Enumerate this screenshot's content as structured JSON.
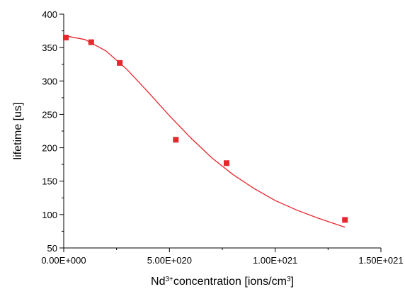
{
  "chart_data": {
    "type": "scatter",
    "title": "",
    "xlabel_parts": {
      "prefix": "Nd",
      "prefix_sup": "3+",
      "middle": "concentration [ions/cm",
      "middle_sup": "3",
      "suffix": "]"
    },
    "ylabel": "lifetime [us]",
    "xlim": [
      0,
      1.5e+21
    ],
    "ylim": [
      50,
      400
    ],
    "x_ticks": [
      0,
      5e+20,
      1e+21,
      1.5e+21
    ],
    "x_tick_labels": [
      "0.00E+000",
      "5.00E+020",
      "1.00E+021",
      "1.50E+021"
    ],
    "y_ticks": [
      50,
      100,
      150,
      200,
      250,
      300,
      350,
      400
    ],
    "y_tick_labels": [
      "50",
      "100",
      "150",
      "200",
      "250",
      "300",
      "350",
      "400"
    ],
    "grid": false,
    "legend": "none",
    "series": [
      {
        "kind": "points",
        "marker": "square",
        "color": "#e8262e",
        "x": [
          1e+19,
          1.3e+20,
          2.65e+20,
          5.3e+20,
          7.7e+20,
          1.33e+21
        ],
        "y": [
          365,
          358,
          327,
          212,
          177,
          92
        ]
      },
      {
        "kind": "fit-line",
        "color": "#e8262e",
        "x": [
          0,
          1e+20,
          2e+20,
          3e+20,
          4e+20,
          5e+20,
          6e+20,
          7e+20,
          8e+20,
          9e+20,
          1e+21,
          1.1e+21,
          1.2e+21,
          1.33e+21
        ],
        "y": [
          368,
          362,
          345,
          317,
          283,
          248,
          215,
          185,
          160,
          139,
          121,
          107,
          95,
          81
        ]
      }
    ]
  }
}
